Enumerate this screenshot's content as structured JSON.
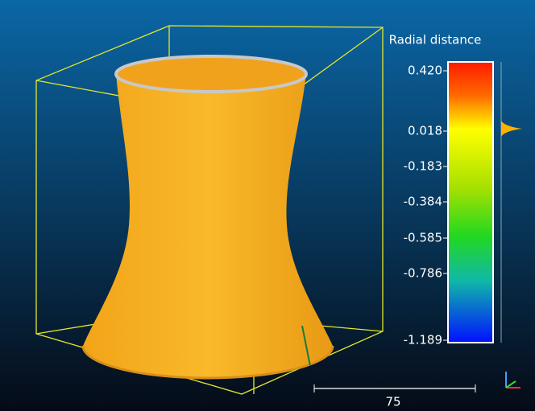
{
  "color_scale": {
    "title": "Radial distance",
    "ticks": [
      "0.420",
      "0.018",
      "-0.183",
      "-0.384",
      "-0.585",
      "-0.786",
      "-1.189"
    ]
  },
  "scale_bar": {
    "label": "75"
  }
}
